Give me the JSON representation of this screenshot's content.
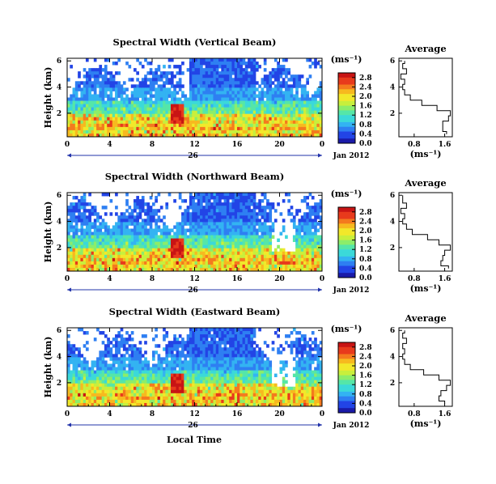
{
  "shared": {
    "colorbar_unit": "(ms⁻¹)",
    "time_xlabel": "Local Time",
    "date_label": "Jan 2012",
    "day_label": "26",
    "x_ticks": [
      "0",
      "4",
      "8",
      "12",
      "16",
      "20",
      "0"
    ],
    "y_ticks": [
      "6",
      "4",
      "2"
    ],
    "profile_y_ticks": [
      "6",
      "4",
      "2"
    ],
    "profile_x_ticks": [
      "0.8",
      "1.6"
    ],
    "profile_xlabel": "(ms⁻¹)",
    "profile_title": "Average",
    "colors": {
      "scale": [
        "#1a1aa8",
        "#2244e6",
        "#2e7ff2",
        "#33b3f2",
        "#3bd9d9",
        "#55e6a8",
        "#8ced6a",
        "#c8ef3c",
        "#f2e82a",
        "#f7b91f",
        "#f47a1e",
        "#e83a1c",
        "#c81414"
      ],
      "background": "#ffffff",
      "missing": "#ffffff"
    }
  },
  "chart_data": [
    {
      "type": "heatmap",
      "title": "Spectral Width (Vertical Beam)",
      "ylabel": "Height (km)",
      "xlabel": "Local Time",
      "xlim": [
        0,
        24
      ],
      "ylim": [
        0.2,
        6.2
      ],
      "colorbar_ticks": [
        "2.8",
        "2.4",
        "2.0",
        "1.6",
        "1.2",
        "0.8",
        "0.4",
        "0.0"
      ],
      "colorbar_range": [
        0.0,
        3.0
      ],
      "profile": {
        "title": "Average",
        "xlim": [
          0.4,
          1.8
        ],
        "heights": [
          0.4,
          0.8,
          1.2,
          1.6,
          2.0,
          2.4,
          2.8,
          3.2,
          3.6,
          4.0,
          4.4,
          4.8,
          5.2,
          5.6,
          6.0
        ],
        "values": [
          1.65,
          1.55,
          1.55,
          1.7,
          1.75,
          1.4,
          1.0,
          0.7,
          0.55,
          0.5,
          0.55,
          0.45,
          0.6,
          0.5,
          0.55
        ]
      }
    },
    {
      "type": "heatmap",
      "title": "Spectral Width (Northward Beam)",
      "ylabel": "Height (km)",
      "xlabel": "Local Time",
      "xlim": [
        0,
        24
      ],
      "ylim": [
        0.2,
        6.2
      ],
      "colorbar_ticks": [
        "2.8",
        "2.4",
        "2.0",
        "1.6",
        "1.2",
        "0.8",
        "0.4",
        "0.0"
      ],
      "colorbar_range": [
        0.0,
        3.0
      ],
      "profile": {
        "title": "Average",
        "xlim": [
          0.4,
          1.8
        ],
        "heights": [
          0.4,
          0.8,
          1.2,
          1.6,
          2.0,
          2.4,
          2.8,
          3.2,
          3.6,
          4.0,
          4.4,
          4.8,
          5.2,
          5.6,
          6.0
        ],
        "values": [
          1.7,
          1.5,
          1.55,
          1.6,
          1.75,
          1.45,
          1.15,
          0.75,
          0.6,
          0.5,
          0.55,
          0.45,
          0.6,
          0.5,
          0.5
        ]
      }
    },
    {
      "type": "heatmap",
      "title": "Spectral Width (Eastward Beam)",
      "ylabel": "Height (km)",
      "xlabel": "Local Time",
      "xlim": [
        0,
        24
      ],
      "ylim": [
        0.2,
        6.2
      ],
      "colorbar_ticks": [
        "2.8",
        "2.4",
        "2.0",
        "1.6",
        "1.2",
        "0.8",
        "0.4",
        "0.0"
      ],
      "colorbar_range": [
        0.0,
        3.0
      ],
      "profile": {
        "title": "Average",
        "xlim": [
          0.4,
          1.8
        ],
        "heights": [
          0.4,
          0.8,
          1.2,
          1.6,
          2.0,
          2.4,
          2.8,
          3.2,
          3.6,
          4.0,
          4.4,
          4.8,
          5.2,
          5.6,
          6.0
        ],
        "values": [
          1.6,
          1.45,
          1.5,
          1.65,
          1.75,
          1.45,
          1.05,
          0.7,
          0.55,
          0.5,
          0.55,
          0.5,
          0.6,
          0.5,
          0.55
        ]
      }
    }
  ]
}
